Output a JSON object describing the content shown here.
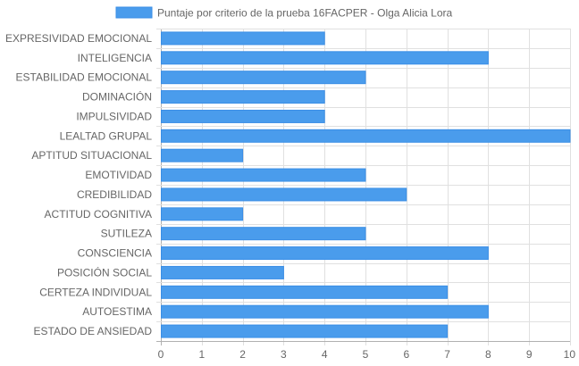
{
  "chart_data": {
    "type": "bar",
    "orientation": "horizontal",
    "series": [
      {
        "name": "Puntaje por criterio de la prueba 16FACPER - Olga Alicia Lora",
        "values": [
          4,
          8,
          5,
          4,
          4,
          10,
          2,
          5,
          6,
          2,
          5,
          8,
          3,
          7,
          8,
          7
        ]
      }
    ],
    "categories": [
      "EXPRESIVIDAD EMOCIONAL",
      "INTELIGENCIA",
      "ESTABILIDAD EMOCIONAL",
      "DOMINACIÓN",
      "IMPULSIVIDAD",
      "LEALTAD GRUPAL",
      "APTITUD SITUACIONAL",
      "EMOTIVIDAD",
      "CREDIBILIDAD",
      "ACTITUD COGNITIVA",
      "SUTILEZA",
      "CONSCIENCIA",
      "POSICIÓN SOCIAL",
      "CERTEZA INDIVIDUAL",
      "AUTOESTIMA",
      "ESTADO DE ANSIEDAD"
    ],
    "xlim": [
      0,
      10
    ],
    "ticks": [
      "0",
      "1",
      "2",
      "3",
      "4",
      "5",
      "6",
      "7",
      "8",
      "9",
      "10"
    ],
    "grid": true,
    "legend": "top-center",
    "colors": {
      "bar_fill": "#4a9cec",
      "bar_border": "#3a8ee6",
      "grid": "#e0e0e0",
      "axis": "#b0b0b0",
      "text": "#666666"
    }
  }
}
